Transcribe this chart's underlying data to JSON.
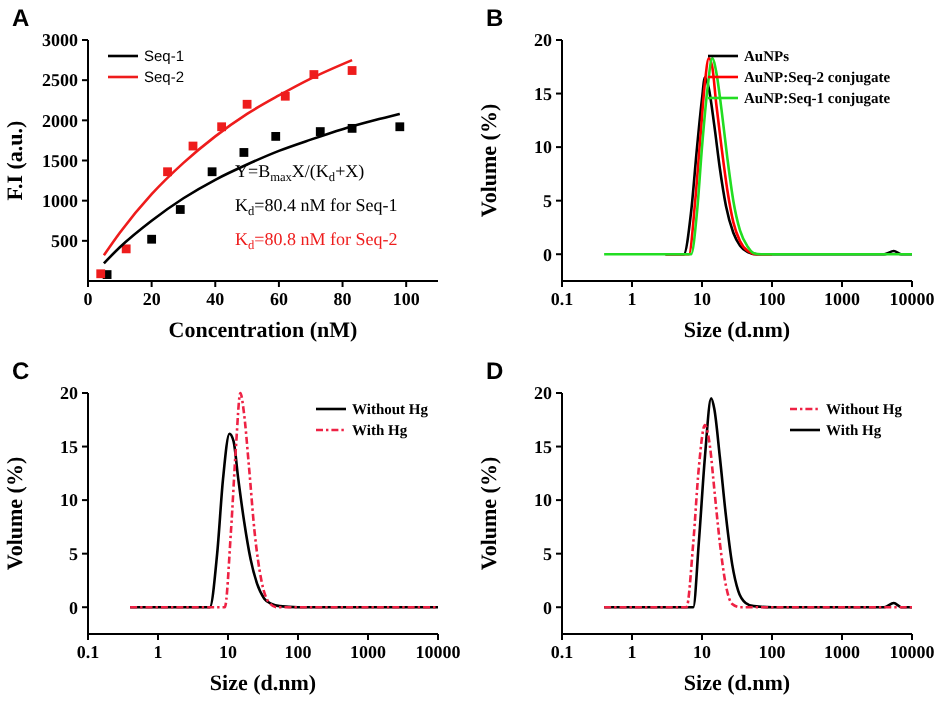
{
  "chart_data": [
    {
      "type": "line",
      "title": "A",
      "xlabel": "Concentration (nM)",
      "ylabel": "F.I (a.u.)",
      "xlim": [
        0,
        110
      ],
      "xticks": [
        0,
        20,
        40,
        60,
        80,
        100
      ],
      "ylim": [
        0,
        3000
      ],
      "yticks": [
        500,
        1000,
        1500,
        2000,
        2500,
        3000
      ],
      "legend": "top left",
      "series": [
        {
          "type": "scatter",
          "marker": "square",
          "color": "#000000",
          "x": [
            6,
            20,
            29,
            39,
            49,
            59,
            73,
            83,
            98
          ],
          "values": [
            80,
            520,
            890,
            1360,
            1600,
            1800,
            1860,
            1900,
            1920
          ]
        },
        {
          "type": "scatter",
          "marker": "square",
          "color": "#ee1c1c",
          "x": [
            4,
            12,
            25,
            33,
            42,
            50,
            62,
            71,
            83
          ],
          "values": [
            90,
            400,
            1360,
            1680,
            1920,
            2200,
            2300,
            2570,
            2620
          ]
        },
        {
          "name": "Seq-1",
          "type": "line",
          "marker": "none",
          "color": "#000000",
          "x": [
            5,
            10,
            20,
            30,
            40,
            50,
            60,
            70,
            80,
            90,
            98
          ],
          "values": [
            220,
            420,
            750,
            1030,
            1260,
            1450,
            1620,
            1760,
            1890,
            2000,
            2080
          ]
        },
        {
          "name": "Seq-2",
          "type": "line",
          "marker": "none",
          "color": "#ee1c1c",
          "x": [
            5,
            10,
            20,
            30,
            40,
            50,
            60,
            70,
            83
          ],
          "values": [
            320,
            600,
            1080,
            1470,
            1800,
            2080,
            2310,
            2520,
            2750
          ]
        }
      ],
      "annotations": [
        "Y=B$_{max}$X/(K$_{d}$+X)",
        "K$_{d}$=80.4 nM for Seq-1",
        "K$_{d}$=80.8 nM for Seq-2"
      ]
    },
    {
      "type": "line",
      "title": "B",
      "xlabel": "Size (d.nm)",
      "ylabel": "Volume (%)",
      "log": "x",
      "xlim": [
        0.1,
        10000
      ],
      "xticks": [
        0.1,
        1,
        10,
        100,
        1000,
        10000
      ],
      "ylim": [
        -2.5,
        20
      ],
      "yticks": [
        0,
        5,
        10,
        15,
        20
      ],
      "legend": "top right",
      "series": [
        {
          "name": "AuNPs",
          "color": "#000000",
          "x": [
            3,
            5.5,
            7,
            8.5,
            10,
            11,
            12.5,
            15,
            18,
            22,
            28,
            35,
            45,
            60,
            100,
            1000,
            4000,
            5500,
            7000,
            10000
          ],
          "values": [
            0,
            0,
            4,
            10,
            14.5,
            16.5,
            15.5,
            12,
            8,
            4.5,
            2,
            0.8,
            0.2,
            0,
            0,
            0,
            0,
            0.3,
            0,
            0
          ]
        },
        {
          "name": "AuNP:Seq-2 conjugate",
          "color": "#ff0000",
          "x": [
            3,
            6.5,
            8,
            9.5,
            11,
            12.5,
            14,
            16,
            19,
            23,
            28,
            35,
            45,
            60,
            100
          ],
          "values": [
            0,
            0,
            5,
            11,
            16,
            18.3,
            17.5,
            14,
            10,
            6,
            3,
            1.2,
            0.3,
            0,
            0
          ]
        },
        {
          "name": "AuNP:Seq-1 conjugate",
          "color": "#22dd22",
          "x": [
            0.4,
            1,
            3,
            7,
            8.5,
            10,
            12,
            14,
            16,
            19,
            23,
            28,
            35,
            45,
            55,
            70,
            100,
            1000,
            10000
          ],
          "values": [
            0,
            0,
            0,
            0,
            4,
            10,
            15.5,
            18.3,
            17,
            13.5,
            9,
            5,
            2.2,
            0.7,
            0.1,
            0,
            0,
            0,
            0
          ]
        }
      ]
    },
    {
      "type": "line",
      "title": "C",
      "xlabel": "Size (d.nm)",
      "ylabel": "Volume (%)",
      "log": "x",
      "xlim": [
        0.1,
        10000
      ],
      "xticks": [
        0.1,
        1,
        10,
        100,
        1000,
        10000
      ],
      "ylim": [
        -2.5,
        20
      ],
      "yticks": [
        0,
        5,
        10,
        15,
        20
      ],
      "legend": "top right",
      "series": [
        {
          "name": "Without Hg",
          "color": "#000000",
          "line_style": "solid",
          "x": [
            0.4,
            1,
            3,
            5.5,
            7,
            8.5,
            10.5,
            12,
            14,
            17,
            21,
            26,
            33,
            42,
            55,
            100,
            1000,
            10000
          ],
          "values": [
            0,
            0,
            0,
            0,
            5,
            12,
            16.2,
            15.5,
            12,
            8,
            4.5,
            2.2,
            0.8,
            0.3,
            0.1,
            0,
            0,
            0
          ]
        },
        {
          "name": "With Hg",
          "color": "#ee2244",
          "line_style": "dashed",
          "x": [
            0.4,
            1,
            5,
            9,
            11,
            13,
            15,
            17,
            20,
            24,
            30,
            38,
            50,
            100,
            1000,
            10000
          ],
          "values": [
            0,
            0,
            0,
            0,
            7,
            15,
            20,
            18,
            13,
            7,
            2.5,
            0.5,
            0,
            0,
            0,
            0
          ]
        }
      ]
    },
    {
      "type": "line",
      "title": "D",
      "xlabel": "Size (d.nm)",
      "ylabel": "Volume (%)",
      "log": "x",
      "xlim": [
        0.1,
        10000
      ],
      "xticks": [
        0.1,
        1,
        10,
        100,
        1000,
        10000
      ],
      "ylim": [
        -2.5,
        20
      ],
      "yticks": [
        0,
        5,
        10,
        15,
        20
      ],
      "legend": "top right",
      "series": [
        {
          "name": "Without Hg",
          "color": "#ee2244",
          "line_style": "dashed",
          "x": [
            0.4,
            1,
            5,
            6,
            7.5,
            9,
            11,
            13,
            15,
            18,
            22,
            27,
            35,
            100,
            1000,
            10000
          ],
          "values": [
            0,
            0,
            0,
            0,
            6,
            13,
            17,
            15,
            11,
            6,
            2,
            0.3,
            0,
            0,
            0,
            0
          ]
        },
        {
          "name": "With Hg",
          "color": "#000000",
          "line_style": "solid",
          "x": [
            0.4,
            1,
            5,
            7.5,
            9,
            11,
            13.5,
            15,
            18,
            22,
            27,
            33,
            42,
            55,
            100,
            1000,
            4000,
            5500,
            7000,
            10000
          ],
          "values": [
            0,
            0,
            0,
            0,
            6,
            14,
            19.5,
            18.5,
            14,
            8.5,
            4,
            1.5,
            0.4,
            0.1,
            0,
            0,
            0,
            0.4,
            0,
            0
          ]
        }
      ]
    }
  ]
}
